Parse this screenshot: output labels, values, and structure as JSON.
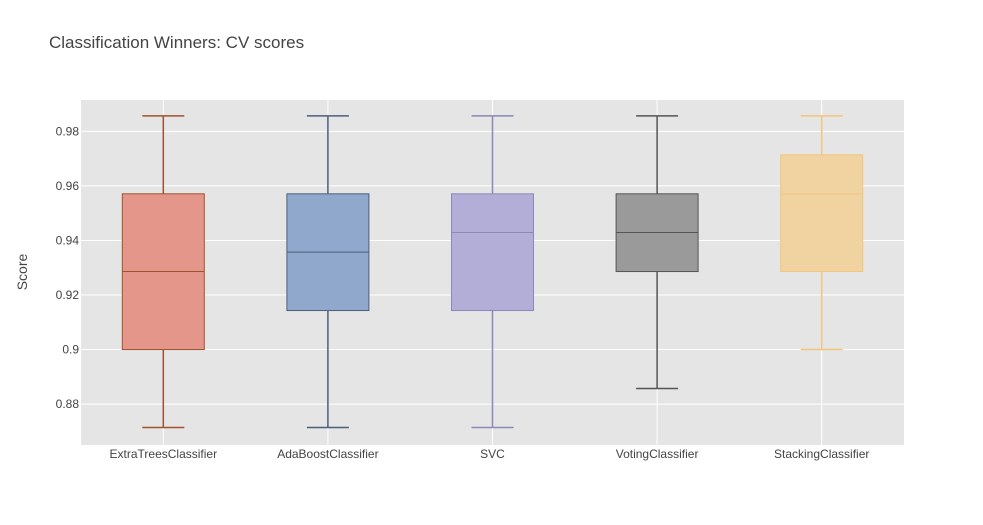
{
  "chart_data": {
    "type": "box",
    "title": "Classification Winners: CV scores",
    "xlabel": "",
    "ylabel": "Score",
    "ylim": [
      0.865,
      0.9915
    ],
    "yticks": [
      0.88,
      0.9,
      0.92,
      0.94,
      0.96,
      0.98
    ],
    "ytick_labels": [
      "0.88",
      "0.9",
      "0.92",
      "0.94",
      "0.96",
      "0.98"
    ],
    "grid": true,
    "background": "#e5e5e5",
    "categories": [
      "ExtraTreesClassifier",
      "AdaBoostClassifier",
      "SVC",
      "VotingClassifier",
      "StackingClassifier"
    ],
    "series": [
      {
        "min": 0.8714,
        "q1": 0.9,
        "median": 0.9286,
        "q3": 0.9571,
        "max": 0.9857,
        "color": "#e5968a",
        "line": "#a0522d"
      },
      {
        "min": 0.8714,
        "q1": 0.9143,
        "median": 0.9357,
        "q3": 0.9571,
        "max": 0.9857,
        "color": "#8fa8cc",
        "line": "#4d5f7d"
      },
      {
        "min": 0.8714,
        "q1": 0.9143,
        "median": 0.9429,
        "q3": 0.9571,
        "max": 0.9857,
        "color": "#b3aed8",
        "line": "#8b89b8"
      },
      {
        "min": 0.8857,
        "q1": 0.9286,
        "median": 0.9429,
        "q3": 0.9571,
        "max": 0.9857,
        "color": "#9a9a9a",
        "line": "#555555"
      },
      {
        "min": 0.9,
        "q1": 0.9286,
        "median": 0.9571,
        "q3": 0.9714,
        "max": 0.9857,
        "color": "#f0d3a0",
        "line": "#f2c57c"
      }
    ]
  }
}
